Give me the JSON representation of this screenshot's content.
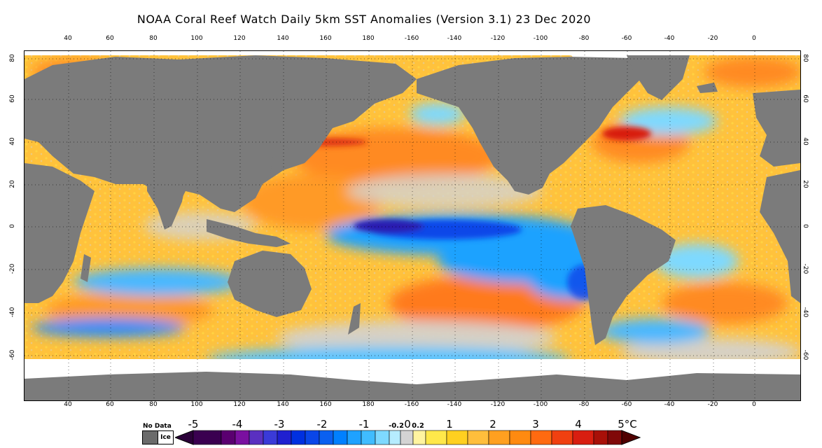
{
  "title": "NOAA Coral Reef Watch Daily 5km SST Anomalies (Version 3.1)  23 Dec 2020",
  "colors": {
    "land": "#7b7b7b",
    "ice": "#ffffff",
    "neutral": "#d3d3d3",
    "warm1": "#ffe84a",
    "warm2": "#ffbe3c",
    "warm3": "#ff7a1a",
    "warm4": "#d81e10",
    "cool1": "#7ed9ff",
    "cool2": "#1fa2ff",
    "cool3": "#0a46e8",
    "cool4": "#2a1fb0"
  },
  "axes": {
    "lon_top": [
      "40",
      "60",
      "80",
      "100",
      "120",
      "140",
      "160",
      "180",
      "-160",
      "-140",
      "-120",
      "-100",
      "-80",
      "-60",
      "-40",
      "-20",
      "0"
    ],
    "lon_bottom": [
      "40",
      "60",
      "80",
      "100",
      "120",
      "140",
      "160",
      "180",
      "-160",
      "-140",
      "-120",
      "-100",
      "-80",
      "-60",
      "-40",
      "-20",
      "0"
    ],
    "lat_left": [
      "80",
      "60",
      "40",
      "20",
      "0",
      "-20",
      "-40",
      "-60"
    ],
    "lat_right": [
      "80",
      "60",
      "40",
      "20",
      "0",
      "-20",
      "-40",
      "-60"
    ]
  },
  "legend": {
    "no_data": "No Data",
    "ice": "Ice",
    "labels": [
      "-5",
      "-4",
      "-3",
      "-2",
      "-1",
      "-0.2",
      "0",
      "0.2",
      "1",
      "2",
      "3",
      "4",
      "5°C"
    ],
    "colors": [
      "#2a0038",
      "#4a0068",
      "#6a109a",
      "#5a30c0",
      "#3a3ad8",
      "#2020d0",
      "#0030e0",
      "#0a60f0",
      "#0090ff",
      "#20b0ff",
      "#60d0ff",
      "#90e6ff",
      "#d3d3d3",
      "#fff080",
      "#ffe030",
      "#ffd020",
      "#ffb020",
      "#ff9a10",
      "#ff7a10",
      "#ff5a10",
      "#f03010",
      "#d01808",
      "#b01008",
      "#800808",
      "#600000"
    ]
  }
}
